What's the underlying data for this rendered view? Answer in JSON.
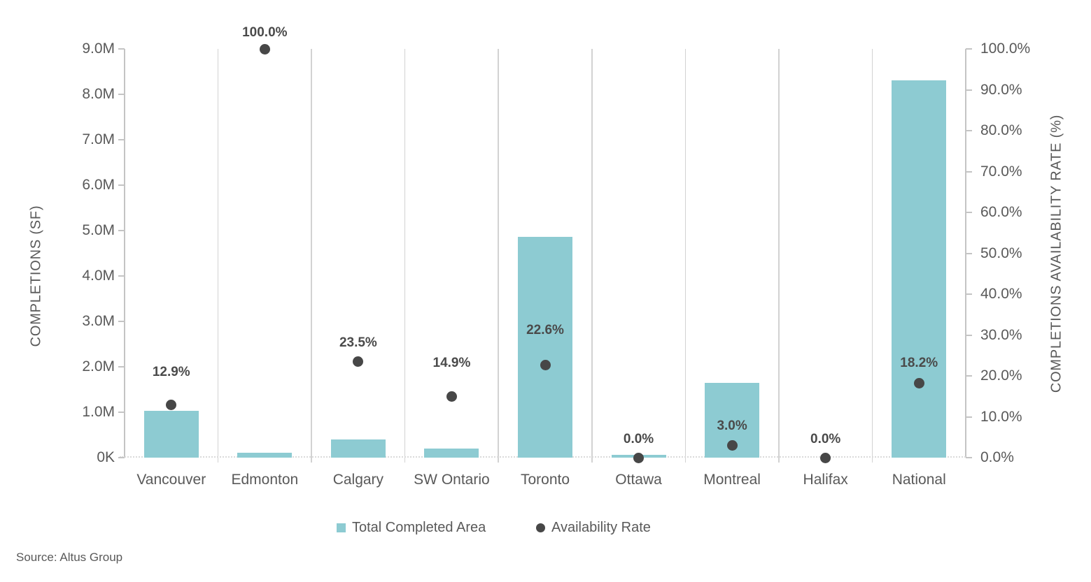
{
  "chart_data": {
    "type": "combo",
    "categories": [
      "Vancouver",
      "Edmonton",
      "Calgary",
      "SW Ontario",
      "Toronto",
      "Ottawa",
      "Montreal",
      "Halifax",
      "National"
    ],
    "series": [
      {
        "name": "Total Completed Area",
        "type": "bar",
        "axis": "left",
        "color": "#8dcbd2",
        "values_sf": [
          1030000,
          110000,
          400000,
          195000,
          4860000,
          65000,
          1640000,
          0,
          8310000
        ]
      },
      {
        "name": "Availability Rate",
        "type": "point",
        "axis": "right",
        "color": "#474747",
        "values_pct": [
          12.9,
          100.0,
          23.5,
          14.9,
          22.6,
          0.0,
          3.0,
          0.0,
          18.2
        ],
        "labels": [
          "12.9%",
          "100.0%",
          "23.5%",
          "14.9%",
          "22.6%",
          "0.0%",
          "3.0%",
          "0.0%",
          "18.2%"
        ],
        "label_dy": [
          47,
          23,
          27,
          48,
          50,
          26,
          27,
          26,
          29
        ]
      }
    ],
    "left_axis": {
      "title": "COMPLETIONS (SF)",
      "tick_labels": [
        "0K",
        "1.0M",
        "2.0M",
        "3.0M",
        "4.0M",
        "5.0M",
        "6.0M",
        "7.0M",
        "8.0M",
        "9.0M"
      ],
      "max": 9000000
    },
    "right_axis": {
      "title": "COMPLETIONS AVAILABILITY RATE (%)",
      "tick_labels": [
        "0.0%",
        "10.0%",
        "20.0%",
        "30.0%",
        "40.0%",
        "50.0%",
        "60.0%",
        "70.0%",
        "80.0%",
        "90.0%",
        "100.0%"
      ],
      "max": 100
    },
    "legend": [
      {
        "label": "Total Completed Area",
        "marker": "square",
        "color": "#8dcbd2"
      },
      {
        "label": "Availability Rate",
        "marker": "circle",
        "color": "#474747"
      }
    ],
    "grid": "vertical-category-separators",
    "legend_position": "bottom-center"
  },
  "footer": {
    "source": "Source: Altus Group"
  },
  "colors": {
    "bar": "#8dcbd2",
    "point": "#474747",
    "text": "#595959",
    "data_label_text": "#4a4a4a",
    "axis_line": "#c4c4c4",
    "gridline": "#d2d2d2",
    "dotted_baseline": "#dadada",
    "background": "#ffffff"
  }
}
